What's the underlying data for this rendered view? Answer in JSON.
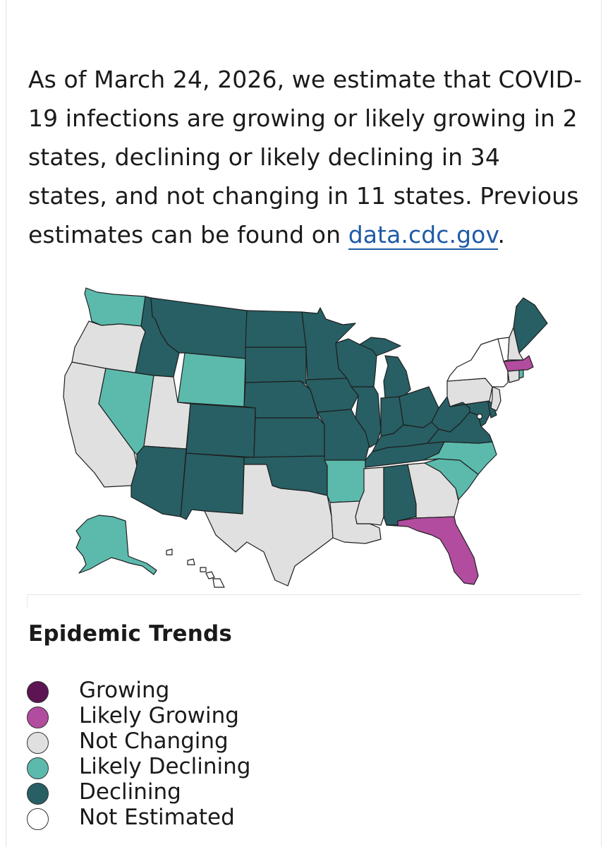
{
  "intro": {
    "text": "As of March 24, 2026, we estimate that COVID-19 infections are growing or likely growing in 2 states, declining or likely declining in 34 states, and not changing in 11 states. Previous estimates can be found on ",
    "link_text": "data.cdc.gov",
    "end": "."
  },
  "colors": {
    "growing": "#5c1452",
    "likely_growing": "#b24c9f",
    "not_changing": "#e0e0e0",
    "likely_declining": "#5cbaad",
    "declining": "#275f64",
    "not_estimated": "#ffffff"
  },
  "map": {
    "states": {
      "WA": "likely_declining",
      "OR": "not_changing",
      "CA": "not_changing",
      "NV": "likely_declining",
      "ID": "declining",
      "MT": "declining",
      "WY": "likely_declining",
      "UT": "not_changing",
      "AZ": "declining",
      "CO": "declining",
      "NM": "declining",
      "ND": "declining",
      "SD": "declining",
      "NE": "declining",
      "KS": "declining",
      "OK": "declining",
      "TX": "not_changing",
      "MN": "declining",
      "IA": "declining",
      "MO": "declining",
      "AR": "likely_declining",
      "LA": "not_changing",
      "WI": "declining",
      "IL": "declining",
      "MS": "not_changing",
      "MI": "declining",
      "IN": "declining",
      "KY": "declining",
      "TN": "declining",
      "AL": "declining",
      "OH": "declining",
      "WV": "declining",
      "VA": "declining",
      "NC": "likely_declining",
      "SC": "likely_declining",
      "GA": "not_changing",
      "FL": "likely_growing",
      "PA": "not_changing",
      "NY": "not_estimated",
      "NJ": "not_changing",
      "MD": "declining",
      "DE": "declining",
      "DC": "not_estimated",
      "CT": "not_changing",
      "RI": "likely_declining",
      "MA": "likely_growing",
      "VT": "not_estimated",
      "NH": "not_changing",
      "ME": "declining",
      "AK": "likely_declining",
      "HI": "not_estimated"
    }
  },
  "legend": {
    "title": "Epidemic Trends",
    "items": [
      {
        "key": "growing",
        "label": "Growing"
      },
      {
        "key": "likely_growing",
        "label": "Likely Growing"
      },
      {
        "key": "not_changing",
        "label": "Not Changing"
      },
      {
        "key": "likely_declining",
        "label": "Likely Declining"
      },
      {
        "key": "declining",
        "label": "Declining"
      },
      {
        "key": "not_estimated",
        "label": "Not Estimated"
      }
    ]
  }
}
